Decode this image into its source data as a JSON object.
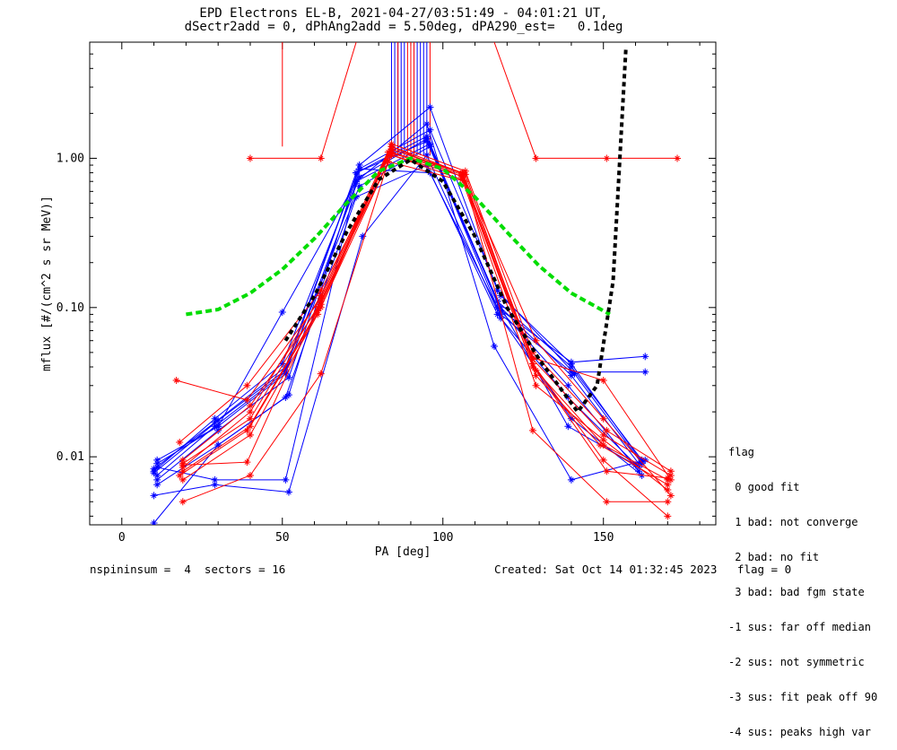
{
  "header": {
    "title_line1": "EPD Electrons EL-B, 2021-04-27/03:51:49 - 04:01:21 UT,",
    "title_line2": "dSectr2add = 0, dPhAng2add = 5.50deg, dPA290_est=   0.1deg"
  },
  "footer": {
    "left": "nspininsum =  4  sectors = 16",
    "right": "Created: Sat Oct 14 01:32:45 2023   flag = 0"
  },
  "legend": {
    "title": "flag",
    "items": [
      " 0 good fit",
      " 1 bad: not converge",
      " 2 bad: no fit",
      " 3 bad: bad fgm state",
      "-1 sus: far off median",
      "-2 sus: not symmetric",
      "-3 sus: fit peak off 90",
      "-4 sus: peaks high var"
    ]
  },
  "chart_data": {
    "type": "line",
    "xlabel": "PA [deg]",
    "ylabel": "mflux [#/(cm^2 s sr MeV)]",
    "xlim": [
      -10,
      185
    ],
    "ylim": [
      0.0035,
      6.0
    ],
    "yscale": "log",
    "xticks": [
      0,
      50,
      100,
      150
    ],
    "xtick_labels": [
      "0",
      "50",
      "100",
      "150"
    ],
    "yticks": [
      0.01,
      0.1,
      1.0
    ],
    "ytick_labels": [
      "0.01",
      "0.10",
      "1.00"
    ],
    "colors": {
      "blue": "#0000ff",
      "red": "#ff0000",
      "green": "#00dd00",
      "black": "#000000"
    },
    "blue_series": [
      {
        "x": [
          10,
          29,
          51,
          73,
          95,
          117,
          140,
          162
        ],
        "y": [
          0.0083,
          0.017,
          0.04,
          0.8,
          1.4,
          0.11,
          0.04,
          0.0095
        ]
      },
      {
        "x": [
          11,
          30,
          51,
          74,
          95,
          118,
          140,
          161
        ],
        "y": [
          0.0095,
          0.016,
          0.036,
          0.75,
          1.35,
          0.1,
          0.035,
          0.009
        ]
      },
      {
        "x": [
          11,
          30,
          52,
          73,
          96,
          118,
          139,
          161
        ],
        "y": [
          0.007,
          0.015,
          0.034,
          0.7,
          1.25,
          0.095,
          0.03,
          0.008
        ]
      },
      {
        "x": [
          10,
          29,
          50,
          74,
          96,
          118,
          140,
          162
        ],
        "y": [
          0.008,
          0.018,
          0.042,
          0.85,
          1.55,
          0.12,
          0.042,
          0.0092
        ]
      },
      {
        "x": [
          11,
          30,
          51,
          73,
          95,
          117,
          139,
          161
        ],
        "y": [
          0.0065,
          0.012,
          0.025,
          0.55,
          0.9,
          0.09,
          0.025,
          0.0085
        ]
      },
      {
        "x": [
          10,
          29,
          52,
          75,
          95,
          118,
          140,
          162
        ],
        "y": [
          0.0055,
          0.0065,
          0.0058,
          0.3,
          1.05,
          0.085,
          0.018,
          0.0075
        ]
      },
      {
        "x": [
          10,
          30,
          52,
          74,
          96,
          117,
          141,
          162
        ],
        "y": [
          0.0036,
          0.012,
          0.026,
          0.9,
          2.2,
          0.13,
          0.036,
          0.009
        ]
      },
      {
        "x": [
          11,
          30,
          50,
          73,
          95,
          116,
          140,
          163
        ],
        "y": [
          0.009,
          0.016,
          0.093,
          0.7,
          1.7,
          0.055,
          0.007,
          0.0095
        ]
      },
      {
        "x": [
          11,
          29,
          51,
          74,
          96,
          118,
          140,
          163
        ],
        "y": [
          0.0085,
          0.007,
          0.007,
          0.85,
          0.8,
          0.09,
          0.037,
          0.037
        ]
      },
      {
        "x": [
          10,
          30,
          51,
          73,
          95,
          117,
          139,
          160
        ],
        "y": [
          0.0078,
          0.0175,
          0.038,
          0.8,
          1.3,
          0.11,
          0.016,
          0.0088
        ]
      },
      {
        "x": [
          11,
          29,
          51,
          74,
          96,
          117,
          140,
          163
        ],
        "y": [
          0.0075,
          0.016,
          0.037,
          0.65,
          1.2,
          0.1,
          0.043,
          0.047
        ]
      }
    ],
    "red_series": [
      {
        "x": [
          19,
          40,
          62,
          84,
          106,
          128,
          150,
          171
        ],
        "y": [
          0.009,
          0.018,
          0.11,
          1.15,
          0.8,
          0.045,
          0.014,
          0.0075
        ]
      },
      {
        "x": [
          19,
          40,
          62,
          84,
          106,
          128,
          150,
          170
        ],
        "y": [
          0.008,
          0.016,
          0.1,
          1.2,
          0.75,
          0.04,
          0.012,
          0.007
        ]
      },
      {
        "x": [
          18,
          39,
          61,
          83,
          106,
          129,
          149,
          170
        ],
        "y": [
          0.0075,
          0.015,
          0.095,
          1.1,
          0.78,
          0.035,
          0.012,
          0.0065
        ]
      },
      {
        "x": [
          19,
          40,
          62,
          84,
          107,
          128,
          151,
          171
        ],
        "y": [
          0.0085,
          0.02,
          0.12,
          1.25,
          0.82,
          0.05,
          0.015,
          0.008
        ]
      },
      {
        "x": [
          19,
          40,
          61,
          84,
          106,
          129,
          150,
          170
        ],
        "y": [
          0.007,
          0.014,
          0.09,
          1.05,
          0.72,
          0.03,
          0.013,
          0.006
        ]
      },
      {
        "x": [
          19,
          40,
          62,
          83,
          107,
          128,
          151,
          170
        ],
        "y": [
          0.005,
          0.0075,
          0.036,
          0.95,
          0.7,
          0.015,
          0.005,
          0.005
        ]
      },
      {
        "x": [
          18,
          39,
          62,
          84,
          106,
          129,
          150,
          171
        ],
        "y": [
          0.0125,
          0.03,
          0.13,
          1.1,
          0.8,
          0.06,
          0.018,
          0.0055
        ]
      },
      {
        "x": [
          19,
          40,
          62,
          84,
          107,
          128,
          150,
          170
        ],
        "y": [
          0.0095,
          0.022,
          0.105,
          1.15,
          0.78,
          0.042,
          0.0095,
          0.004
        ]
      },
      {
        "x": [
          19,
          39,
          61,
          84,
          106,
          129,
          151,
          170
        ],
        "y": [
          0.0088,
          0.0092,
          0.1,
          1.05,
          0.76,
          0.038,
          0.008,
          0.0072
        ]
      },
      {
        "x": [
          17,
          39,
          62,
          84,
          106,
          128,
          150,
          171
        ],
        "y": [
          0.0325,
          0.024,
          0.115,
          1.2,
          0.8,
          0.046,
          0.0325,
          0.007
        ]
      }
    ],
    "red_flag_lines": [
      {
        "x": [
          40,
          62
        ],
        "y": [
          1.0,
          1.0
        ]
      },
      {
        "x": [
          62,
          73
        ],
        "y": [
          1.0,
          6.0
        ]
      },
      {
        "x": [
          50,
          50
        ],
        "y": [
          6.0,
          1.2
        ]
      },
      {
        "x": [
          129,
          173
        ],
        "y": [
          1.0,
          1.0
        ]
      },
      {
        "x": [
          129,
          116
        ],
        "y": [
          1.0,
          6.0
        ]
      }
    ],
    "red_flag_markers": {
      "x": [
        40,
        62,
        129,
        151,
        173
      ],
      "y": [
        1.0,
        1.0,
        1.0,
        1.0,
        1.0
      ]
    },
    "spike_lines": {
      "blue_x": [
        84,
        85,
        86,
        87,
        88,
        91,
        92,
        93,
        94,
        95
      ],
      "red_x": [
        86,
        89,
        90,
        91,
        96
      ],
      "y_bottom": 1.05
    },
    "green_fit": {
      "x": [
        20,
        30,
        40,
        50,
        60,
        70,
        80,
        90,
        100,
        110,
        120,
        130,
        140,
        152
      ],
      "y": [
        0.09,
        0.097,
        0.125,
        0.18,
        0.29,
        0.5,
        0.82,
        1.0,
        0.85,
        0.55,
        0.32,
        0.19,
        0.125,
        0.09
      ]
    },
    "black_fit": {
      "x": [
        51,
        60,
        70,
        80,
        90,
        100,
        110,
        120,
        130,
        142,
        148,
        153,
        157
      ],
      "y": [
        0.06,
        0.12,
        0.32,
        0.72,
        0.98,
        0.7,
        0.3,
        0.1,
        0.045,
        0.02,
        0.03,
        0.15,
        5.5
      ]
    }
  }
}
